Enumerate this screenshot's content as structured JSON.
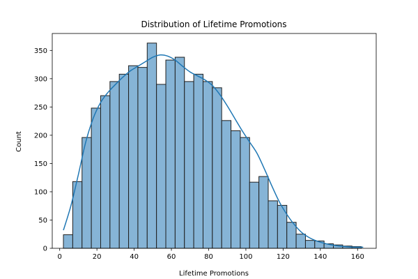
{
  "chart_data": {
    "type": "bar",
    "title": "Distribution of Lifetime Promotions",
    "xlabel": "Lifetime Promotions",
    "ylabel": "Count",
    "xlim": [
      -4,
      170
    ],
    "ylim": [
      0,
      380
    ],
    "x_ticks": [
      0,
      20,
      40,
      60,
      80,
      100,
      120,
      140,
      160
    ],
    "y_ticks": [
      0,
      50,
      100,
      150,
      200,
      250,
      300,
      350
    ],
    "bin_edges": [
      2,
      7,
      12,
      17,
      22,
      27,
      32,
      37,
      42,
      47,
      52,
      57,
      62,
      67,
      72,
      77,
      82,
      87,
      92,
      97,
      102,
      107,
      112,
      117,
      122,
      127,
      132,
      137,
      142,
      147,
      152,
      157,
      162
    ],
    "values": [
      24,
      118,
      196,
      248,
      270,
      295,
      308,
      323,
      320,
      363,
      290,
      333,
      338,
      295,
      308,
      295,
      284,
      226,
      208,
      196,
      117,
      127,
      84,
      76,
      46,
      25,
      14,
      13,
      8,
      6,
      4,
      3
    ],
    "kde": {
      "x": [
        2,
        6,
        10,
        14,
        18,
        22,
        26,
        30,
        34,
        38,
        42,
        46,
        50,
        54,
        58,
        62,
        66,
        70,
        74,
        78,
        82,
        86,
        90,
        94,
        98,
        102,
        106,
        110,
        114,
        118,
        122,
        126,
        130,
        134,
        138,
        142,
        146,
        150,
        154,
        158,
        163
      ],
      "y": [
        32,
        75,
        130,
        188,
        230,
        258,
        276,
        290,
        303,
        314,
        322,
        330,
        338,
        342,
        340,
        333,
        322,
        312,
        305,
        298,
        288,
        272,
        252,
        230,
        208,
        188,
        168,
        140,
        110,
        82,
        60,
        42,
        28,
        19,
        13,
        9,
        6,
        4,
        3,
        2,
        2
      ]
    },
    "grid": false,
    "colors": {
      "bar_fill": "#86b4d6",
      "bar_edge": "#1f1f1f",
      "kde_line": "#1f77b4"
    }
  }
}
